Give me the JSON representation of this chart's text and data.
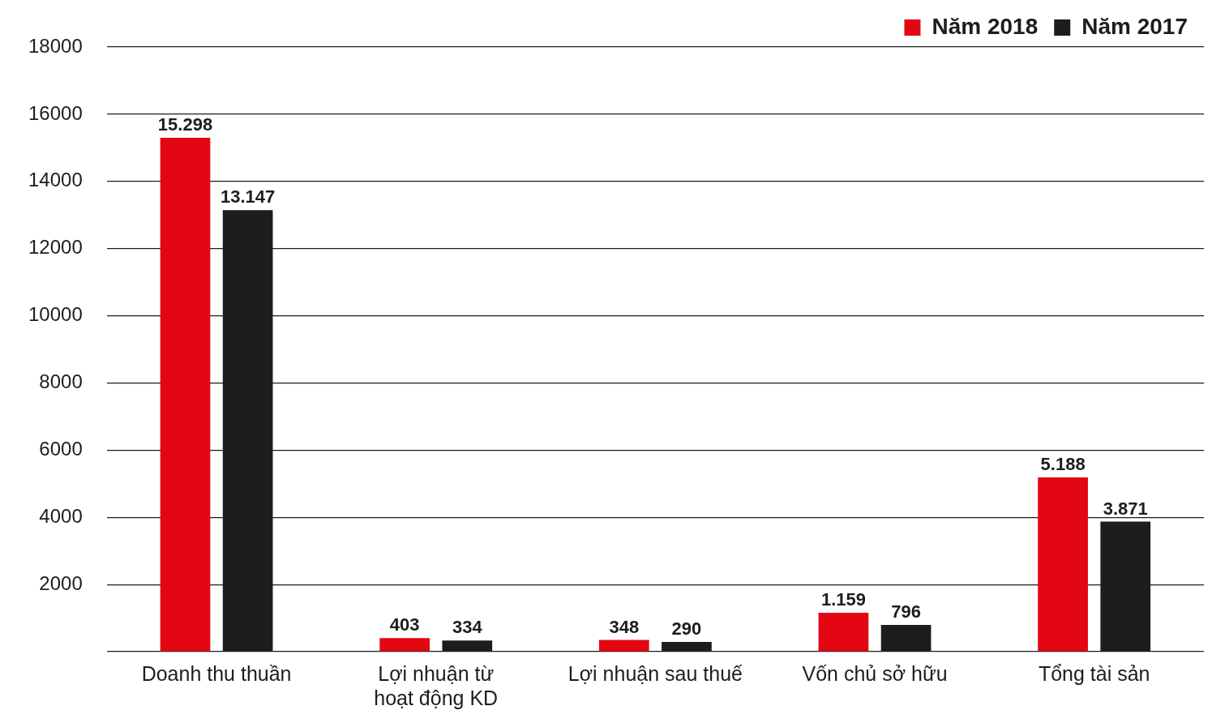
{
  "chart_data": {
    "type": "bar",
    "categories": [
      "Doanh thu thuần",
      "Lợi nhuận từ hoạt động KD",
      "Lợi nhuận sau thuế",
      "Vốn chủ sở hữu",
      "Tổng tài sản"
    ],
    "series": [
      {
        "name": "Năm 2018",
        "color": "#e30613",
        "values": [
          15298,
          403,
          348,
          1159,
          5188
        ],
        "value_labels": [
          "15.298",
          "403",
          "348",
          "1.159",
          "5.188"
        ]
      },
      {
        "name": "Năm 2017",
        "color": "#1d1d1b",
        "values": [
          13147,
          334,
          290,
          796,
          3871
        ],
        "value_labels": [
          "13.147",
          "334",
          "290",
          "796",
          "3.871"
        ]
      }
    ],
    "ylim": [
      0,
      18000
    ],
    "yticks": [
      {
        "value": 0,
        "label": null
      },
      2000,
      4000,
      6000,
      8000,
      10000,
      12000,
      14000,
      16000,
      18000
    ],
    "grid": "y",
    "legend": "top right"
  }
}
